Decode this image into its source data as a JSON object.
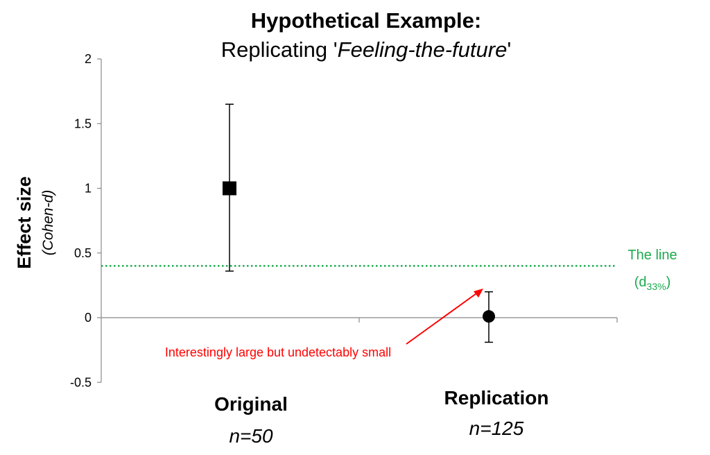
{
  "chart_data": {
    "type": "scatter",
    "title": "Hypothetical Example:",
    "subtitle_prefix": "Replicating '",
    "subtitle_italic": "Feeling-the-future",
    "subtitle_suffix": "'",
    "ylabel": "Effect size",
    "ylabel_sub": "(Cohen-d)",
    "ylim": [
      -0.5,
      2
    ],
    "yticks": [
      -0.5,
      0,
      0.5,
      1,
      1.5,
      2
    ],
    "ytick_labels": [
      "-0.5",
      "0",
      "0.5",
      "1",
      "1.5",
      "2"
    ],
    "categories": [
      {
        "name": "Original",
        "n_label": "n=50"
      },
      {
        "name": "Replication",
        "n_label": "n=125"
      }
    ],
    "points": [
      {
        "category": "Original",
        "estimate": 1.0,
        "ci_low": 0.36,
        "ci_high": 1.65,
        "marker": "square"
      },
      {
        "category": "Replication",
        "estimate": 0.01,
        "ci_low": -0.19,
        "ci_high": 0.2,
        "marker": "circle"
      }
    ],
    "reference_line": {
      "y": 0.4,
      "label_line1": "The line",
      "label_d": "d",
      "label_sub": "33%",
      "label_prefix": "(",
      "label_suffix": ")",
      "color": "#1aab4e",
      "style": "dotted"
    },
    "annotation": {
      "text": "Interestingly large but undetectably small",
      "color": "#ff0000",
      "points_to": "Replication"
    },
    "grid": false
  }
}
